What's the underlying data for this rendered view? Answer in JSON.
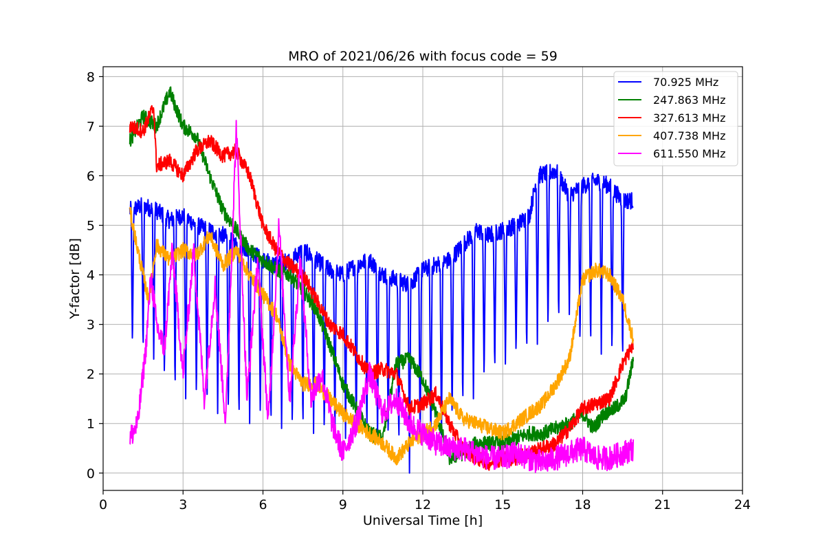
{
  "chart_data": {
    "type": "line",
    "title": "MRO of 2021/06/26 with focus code = 59",
    "xlabel": "Universal Time [h]",
    "ylabel": "Y-factor [dB]",
    "xlim": [
      0,
      24
    ],
    "ylim": [
      -0.35,
      8.2
    ],
    "xticks": [
      0,
      3,
      6,
      9,
      12,
      15,
      18,
      21,
      24
    ],
    "yticks": [
      0,
      1,
      2,
      3,
      4,
      5,
      6,
      7,
      8
    ],
    "grid": true,
    "legend_position": "top-right",
    "series": [
      {
        "name": " 70.925 MHz",
        "color": "#0000ff",
        "baseline": [
          [
            1.0,
            5.3
          ],
          [
            1.5,
            5.4
          ],
          [
            2.0,
            5.3
          ],
          [
            2.5,
            5.1
          ],
          [
            3.0,
            5.2
          ],
          [
            3.5,
            5.0
          ],
          [
            4.0,
            4.9
          ],
          [
            4.5,
            4.8
          ],
          [
            5.0,
            4.6
          ],
          [
            5.5,
            4.5
          ],
          [
            6.0,
            4.3
          ],
          [
            6.5,
            4.2
          ],
          [
            7.0,
            4.3
          ],
          [
            7.5,
            4.5
          ],
          [
            8.0,
            4.3
          ],
          [
            8.5,
            4.1
          ],
          [
            9.0,
            4.0
          ],
          [
            9.5,
            4.2
          ],
          [
            10.0,
            4.3
          ],
          [
            10.5,
            4.0
          ],
          [
            11.0,
            3.9
          ],
          [
            11.5,
            3.8
          ],
          [
            12.0,
            4.1
          ],
          [
            12.5,
            4.2
          ],
          [
            13.0,
            4.3
          ],
          [
            13.5,
            4.6
          ],
          [
            14.0,
            4.9
          ],
          [
            14.5,
            4.8
          ],
          [
            15.0,
            4.9
          ],
          [
            15.5,
            5.0
          ],
          [
            16.0,
            5.2
          ],
          [
            16.3,
            6.0
          ],
          [
            17.0,
            6.1
          ],
          [
            17.5,
            5.6
          ],
          [
            18.0,
            5.8
          ],
          [
            18.5,
            5.9
          ],
          [
            19.0,
            5.8
          ],
          [
            19.5,
            5.5
          ],
          [
            19.9,
            5.5
          ]
        ],
        "dips_x": [
          1.1,
          1.5,
          1.9,
          2.3,
          2.7,
          3.1,
          3.5,
          3.9,
          4.3,
          4.7,
          5.1,
          5.5,
          5.9,
          6.3,
          6.7,
          7.1,
          7.5,
          7.9,
          8.3,
          8.7,
          9.1,
          9.5,
          9.9,
          10.3,
          10.7,
          11.1,
          11.5,
          11.9,
          12.3,
          12.7,
          13.1,
          13.5,
          13.9,
          14.3,
          14.7,
          15.1,
          15.5,
          15.9,
          16.3,
          16.7,
          17.1,
          17.5,
          17.9,
          18.3,
          18.7,
          19.1,
          19.5
        ],
        "dip_values": [
          2.5,
          2.4,
          2.3,
          1.8,
          1.6,
          1.5,
          1.4,
          1.3,
          1.2,
          1.1,
          1.0,
          1.0,
          1.0,
          0.9,
          0.9,
          0.8,
          0.8,
          0.8,
          0.7,
          0.7,
          0.7,
          0.6,
          0.7,
          0.6,
          0.6,
          0.5,
          0.0,
          0.4,
          0.5,
          0.6,
          1.0,
          1.3,
          1.5,
          1.8,
          2.0,
          2.2,
          2.3,
          2.4,
          2.6,
          2.8,
          3.0,
          3.2,
          2.5,
          2.5,
          2.4,
          2.3,
          2.2
        ]
      },
      {
        "name": "247.863 MHz",
        "color": "#008000",
        "points": [
          [
            1.0,
            6.7
          ],
          [
            1.5,
            7.2
          ],
          [
            2.0,
            7.0
          ],
          [
            2.5,
            7.7
          ],
          [
            3.0,
            7.0
          ],
          [
            3.5,
            6.8
          ],
          [
            4.0,
            6.0
          ],
          [
            4.5,
            5.3
          ],
          [
            5.0,
            4.9
          ],
          [
            5.5,
            4.5
          ],
          [
            6.0,
            4.3
          ],
          [
            6.5,
            4.1
          ],
          [
            7.0,
            4.0
          ],
          [
            7.5,
            3.7
          ],
          [
            8.0,
            3.3
          ],
          [
            8.5,
            2.6
          ],
          [
            9.0,
            1.8
          ],
          [
            9.5,
            1.3
          ],
          [
            10.0,
            0.8
          ],
          [
            10.5,
            0.7
          ],
          [
            11.0,
            2.2
          ],
          [
            11.5,
            2.3
          ],
          [
            12.0,
            1.9
          ],
          [
            12.5,
            1.2
          ],
          [
            13.0,
            0.3
          ],
          [
            13.5,
            0.4
          ],
          [
            14.0,
            0.6
          ],
          [
            14.5,
            0.6
          ],
          [
            15.0,
            0.6
          ],
          [
            15.5,
            0.7
          ],
          [
            16.0,
            0.8
          ],
          [
            16.5,
            0.8
          ],
          [
            17.0,
            0.9
          ],
          [
            17.5,
            1.0
          ],
          [
            18.0,
            1.2
          ],
          [
            18.4,
            0.9
          ],
          [
            18.8,
            1.2
          ],
          [
            19.2,
            1.3
          ],
          [
            19.6,
            1.5
          ],
          [
            19.9,
            2.3
          ]
        ]
      },
      {
        "name": "327.613 MHz",
        "color": "#ff0000",
        "points": [
          [
            1.0,
            7.0
          ],
          [
            1.5,
            6.9
          ],
          [
            1.9,
            7.4
          ],
          [
            2.0,
            6.2
          ],
          [
            2.5,
            6.3
          ],
          [
            3.0,
            6.0
          ],
          [
            3.5,
            6.5
          ],
          [
            4.0,
            6.7
          ],
          [
            4.5,
            6.4
          ],
          [
            5.0,
            6.5
          ],
          [
            5.5,
            6.0
          ],
          [
            6.0,
            5.0
          ],
          [
            6.5,
            4.5
          ],
          [
            7.0,
            4.2
          ],
          [
            7.5,
            4.0
          ],
          [
            8.0,
            3.5
          ],
          [
            8.5,
            3.0
          ],
          [
            9.0,
            2.8
          ],
          [
            9.5,
            2.4
          ],
          [
            10.0,
            2.0
          ],
          [
            10.5,
            2.1
          ],
          [
            11.0,
            2.0
          ],
          [
            11.5,
            1.3
          ],
          [
            12.0,
            1.4
          ],
          [
            12.5,
            1.6
          ],
          [
            13.0,
            1.0
          ],
          [
            13.5,
            0.5
          ],
          [
            14.0,
            0.3
          ],
          [
            14.5,
            0.2
          ],
          [
            15.0,
            0.3
          ],
          [
            15.5,
            0.3
          ],
          [
            16.0,
            0.4
          ],
          [
            16.5,
            0.5
          ],
          [
            17.0,
            0.6
          ],
          [
            17.5,
            0.9
          ],
          [
            18.0,
            1.3
          ],
          [
            18.5,
            1.4
          ],
          [
            19.0,
            1.5
          ],
          [
            19.5,
            2.2
          ],
          [
            19.9,
            2.6
          ]
        ]
      },
      {
        "name": "407.738 MHz",
        "color": "#ffa500",
        "points": [
          [
            1.0,
            5.3
          ],
          [
            1.3,
            4.5
          ],
          [
            1.7,
            3.5
          ],
          [
            2.0,
            4.6
          ],
          [
            2.5,
            4.3
          ],
          [
            3.0,
            4.5
          ],
          [
            3.5,
            4.4
          ],
          [
            4.0,
            4.8
          ],
          [
            4.5,
            4.2
          ],
          [
            5.0,
            4.5
          ],
          [
            5.5,
            4.0
          ],
          [
            6.0,
            3.6
          ],
          [
            6.5,
            3.2
          ],
          [
            7.0,
            2.2
          ],
          [
            7.5,
            1.8
          ],
          [
            8.0,
            1.8
          ],
          [
            8.5,
            1.5
          ],
          [
            9.0,
            1.2
          ],
          [
            9.5,
            1.0
          ],
          [
            10.0,
            0.8
          ],
          [
            10.5,
            0.6
          ],
          [
            11.0,
            0.3
          ],
          [
            11.5,
            0.6
          ],
          [
            12.0,
            0.8
          ],
          [
            12.5,
            1.0
          ],
          [
            13.0,
            1.5
          ],
          [
            13.5,
            1.1
          ],
          [
            14.0,
            1.0
          ],
          [
            14.5,
            0.9
          ],
          [
            15.0,
            0.8
          ],
          [
            15.5,
            1.0
          ],
          [
            16.0,
            1.2
          ],
          [
            16.5,
            1.4
          ],
          [
            17.0,
            1.8
          ],
          [
            17.5,
            2.3
          ],
          [
            18.0,
            3.9
          ],
          [
            18.5,
            4.1
          ],
          [
            19.0,
            4.0
          ],
          [
            19.5,
            3.5
          ],
          [
            19.9,
            2.7
          ]
        ]
      },
      {
        "name": "611.550 MHz",
        "color": "#ff00ff",
        "points": [
          [
            1.0,
            0.7
          ],
          [
            1.3,
            1.0
          ],
          [
            1.6,
            2.5
          ],
          [
            1.8,
            4.0
          ],
          [
            2.0,
            3.0
          ],
          [
            2.3,
            2.5
          ],
          [
            2.6,
            4.5
          ],
          [
            3.0,
            2.0
          ],
          [
            3.4,
            4.5
          ],
          [
            3.8,
            1.5
          ],
          [
            4.2,
            3.8
          ],
          [
            4.6,
            1.0
          ],
          [
            5.0,
            7.0
          ],
          [
            5.4,
            1.5
          ],
          [
            5.8,
            4.3
          ],
          [
            6.2,
            1.0
          ],
          [
            6.6,
            5.0
          ],
          [
            7.0,
            1.5
          ],
          [
            7.4,
            4.3
          ],
          [
            7.8,
            1.5
          ],
          [
            8.2,
            2.0
          ],
          [
            8.6,
            1.0
          ],
          [
            9.0,
            0.4
          ],
          [
            9.5,
            1.0
          ],
          [
            10.0,
            2.0
          ],
          [
            10.5,
            1.2
          ],
          [
            11.0,
            1.5
          ],
          [
            11.5,
            1.0
          ],
          [
            12.0,
            0.8
          ],
          [
            12.5,
            0.6
          ],
          [
            13.0,
            0.5
          ],
          [
            13.5,
            0.5
          ],
          [
            14.0,
            0.4
          ],
          [
            14.5,
            0.3
          ],
          [
            15.0,
            0.3
          ],
          [
            15.5,
            0.4
          ],
          [
            16.0,
            0.3
          ],
          [
            16.5,
            0.2
          ],
          [
            17.0,
            0.3
          ],
          [
            17.5,
            0.4
          ],
          [
            18.0,
            0.5
          ],
          [
            18.5,
            0.3
          ],
          [
            19.0,
            0.3
          ],
          [
            19.5,
            0.4
          ],
          [
            19.9,
            0.5
          ]
        ]
      }
    ]
  }
}
